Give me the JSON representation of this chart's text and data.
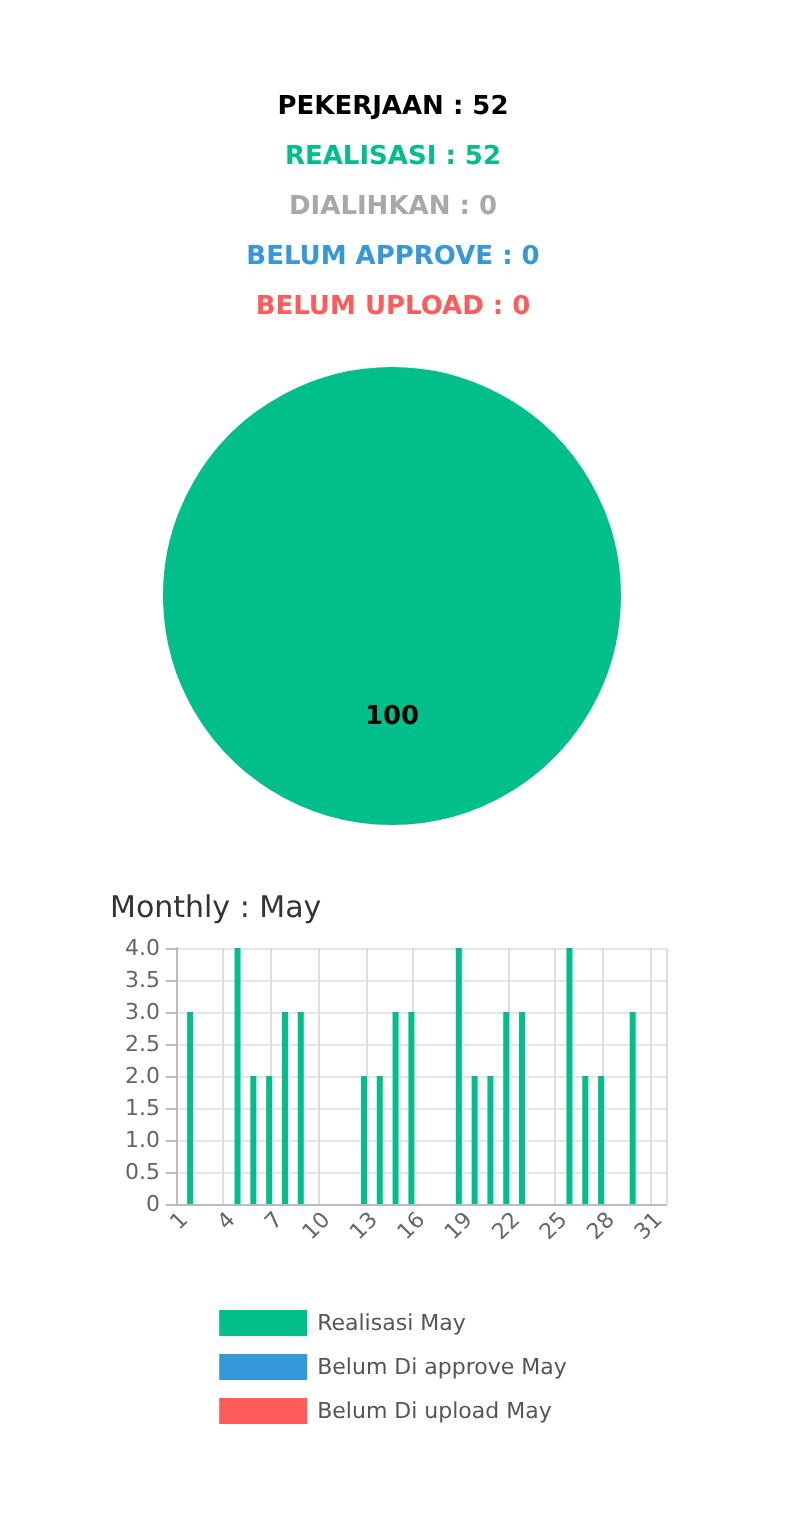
{
  "chart_data": [
    {
      "type": "pie",
      "annotations": [
        "PEKERJAAN : 52",
        "REALISASI : 52",
        "DIALIHKAN : 0",
        "BELUM APPROVE : 0",
        "BELUM UPLOAD : 0"
      ],
      "categories": [
        null
      ],
      "values": [
        100
      ],
      "colors": [
        "#00bf8a"
      ],
      "data_labels": true,
      "legend": false
    },
    {
      "type": "bar",
      "title": "Monthly : May",
      "categories": [
        "1",
        null,
        null,
        "4",
        null,
        null,
        "7",
        null,
        null,
        "10",
        null,
        null,
        "13",
        null,
        null,
        "16",
        null,
        null,
        "19",
        null,
        null,
        "22",
        null,
        null,
        "25",
        null,
        null,
        "28",
        null,
        null,
        "31"
      ],
      "series": [
        {
          "name": "Realisasi May",
          "color": "#00bf8a",
          "values": [
            0,
            3,
            0,
            0,
            4,
            2,
            2,
            3,
            3,
            0,
            0,
            0,
            2,
            2,
            3,
            3,
            0,
            0,
            4,
            2,
            2,
            3,
            3,
            0,
            0,
            4,
            2,
            2,
            0,
            3,
            0
          ]
        },
        {
          "name": "Belum Di approve May",
          "color": "#3498db",
          "values": [
            0,
            0,
            0,
            0,
            0,
            0,
            0,
            0,
            0,
            0,
            0,
            0,
            0,
            0,
            0,
            0,
            0,
            0,
            0,
            0,
            0,
            0,
            0,
            0,
            0,
            0,
            0,
            0,
            0,
            0,
            0
          ]
        },
        {
          "name": "Belum Di upload May",
          "color": "#ff5b5b",
          "values": [
            0,
            0,
            0,
            0,
            0,
            0,
            0,
            0,
            0,
            0,
            0,
            0,
            0,
            0,
            0,
            0,
            0,
            0,
            0,
            0,
            0,
            0,
            0,
            0,
            0,
            0,
            0,
            0,
            0,
            0,
            0
          ]
        }
      ],
      "ylim": [
        0,
        4
      ],
      "yticks": [
        0,
        {
          "value": 0.5,
          "label": "0.5"
        },
        {
          "value": 1,
          "label": "1.0"
        },
        {
          "value": 1.5,
          "label": "1.5"
        },
        {
          "value": 2,
          "label": "2.0"
        },
        {
          "value": 2.5,
          "label": "2.5"
        },
        {
          "value": 3,
          "label": "3.0"
        },
        {
          "value": 3.5,
          "label": "3.5"
        },
        {
          "value": 4,
          "label": "4.0"
        }
      ],
      "grid": true,
      "legend": "bottom"
    }
  ]
}
